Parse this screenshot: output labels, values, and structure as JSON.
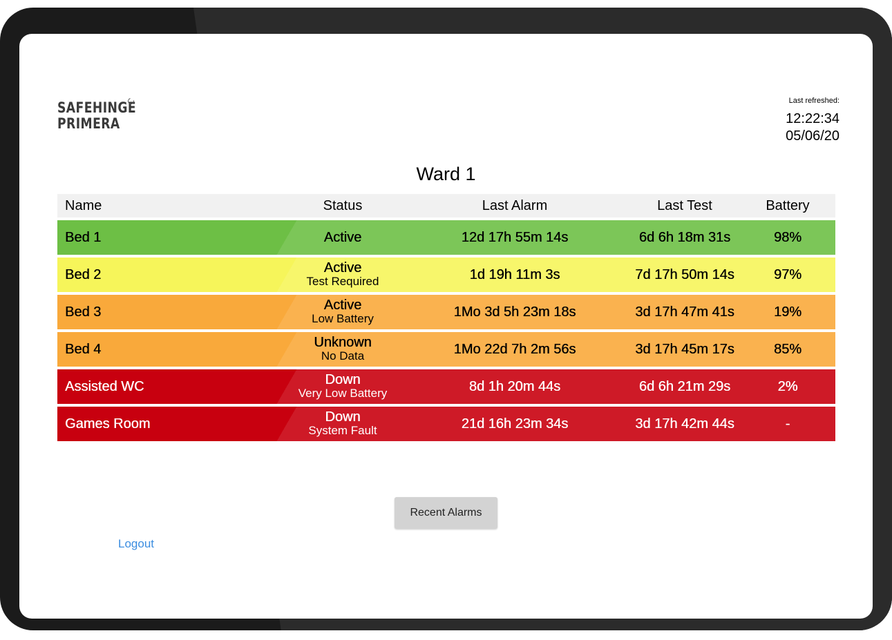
{
  "brand": {
    "line1": "SAFEHINGE",
    "line2": "PRIMERA"
  },
  "refresh": {
    "label": "Last refreshed:",
    "time": "12:22:34",
    "date": "05/06/20"
  },
  "ward_title": "Ward 1",
  "table": {
    "columns": [
      "Name",
      "Status",
      "Last Alarm",
      "Last Test",
      "Battery"
    ],
    "rows": [
      {
        "name": "Bed 1",
        "status": "Active",
        "substatus": "",
        "last_alarm": "12d 17h 55m 14s",
        "last_test": "6d 6h 18m 31s",
        "battery": "98%",
        "color": "#6dbf45",
        "text_color": "#000000"
      },
      {
        "name": "Bed 2",
        "status": "Active",
        "substatus": "Test Required",
        "last_alarm": "1d 19h 11m 3s",
        "last_test": "7d 17h 50m 14s",
        "battery": "97%",
        "color": "#f6f55a",
        "text_color": "#000000"
      },
      {
        "name": "Bed 3",
        "status": "Active",
        "substatus": "Low Battery",
        "last_alarm": "1Mo 3d 5h 23m 18s",
        "last_test": "3d 17h 47m 41s",
        "battery": "19%",
        "color": "#f9a93b",
        "text_color": "#000000"
      },
      {
        "name": "Bed 4",
        "status": "Unknown",
        "substatus": "No Data",
        "last_alarm": "1Mo 22d 7h 2m 56s",
        "last_test": "3d 17h 45m 17s",
        "battery": "85%",
        "color": "#f9a93b",
        "text_color": "#000000"
      },
      {
        "name": "Assisted WC",
        "status": "Down",
        "substatus": "Very Low Battery",
        "last_alarm": "8d 1h 20m 44s",
        "last_test": "6d 6h 21m 29s",
        "battery": "2%",
        "color": "#c8000f",
        "text_color": "#ffffff"
      },
      {
        "name": "Games Room",
        "status": "Down",
        "substatus": "System Fault",
        "last_alarm": "21d 16h 23m 34s",
        "last_test": "3d 17h 42m 44s",
        "battery": "-",
        "color": "#c8000f",
        "text_color": "#ffffff"
      }
    ]
  },
  "buttons": {
    "recent_alarms": "Recent Alarms",
    "logout": "Logout"
  }
}
